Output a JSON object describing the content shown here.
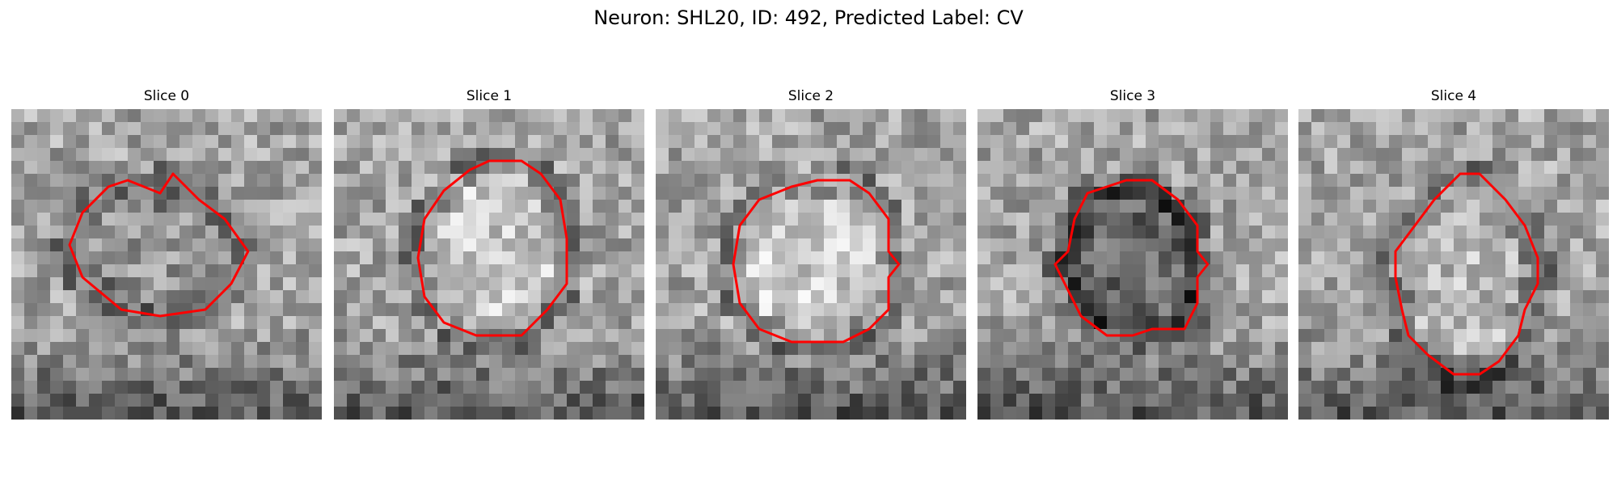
{
  "figure": {
    "title": "Neuron: SHL20, ID: 492, Predicted Label: CV"
  },
  "colors": {
    "contour": "#ff0000",
    "background": "#ffffff"
  },
  "panels": [
    {
      "title": "Slice 0",
      "blob_mean": 150,
      "contour": [
        [
          5,
          1
        ],
        [
          6,
          -0.5
        ],
        [
          8,
          1.5
        ],
        [
          10,
          3
        ],
        [
          11.8,
          5.5
        ],
        [
          10.5,
          8
        ],
        [
          8.5,
          10
        ],
        [
          5,
          10.5
        ],
        [
          2,
          10
        ],
        [
          -1,
          7.5
        ],
        [
          -2,
          5
        ],
        [
          -1,
          2.5
        ],
        [
          1,
          0.5
        ],
        [
          2.5,
          0
        ]
      ]
    },
    {
      "title": "Slice 1",
      "blob_mean": 200,
      "contour": [
        [
          5.5,
          -1.5
        ],
        [
          8,
          -1.5
        ],
        [
          9.5,
          -0.5
        ],
        [
          11,
          1.5
        ],
        [
          11.5,
          4.5
        ],
        [
          11.5,
          8
        ],
        [
          10,
          10
        ],
        [
          8,
          12
        ],
        [
          4.5,
          12
        ],
        [
          2,
          11
        ],
        [
          0.5,
          9
        ],
        [
          0,
          6
        ],
        [
          0.5,
          3
        ],
        [
          2,
          0.8
        ],
        [
          4,
          -0.8
        ]
      ]
    },
    {
      "title": "Slice 2",
      "blob_mean": 205,
      "contour": [
        [
          6,
          0
        ],
        [
          8.5,
          0
        ],
        [
          10,
          1
        ],
        [
          11.5,
          3
        ],
        [
          11.5,
          5.5
        ],
        [
          12.3,
          6.5
        ],
        [
          11.5,
          7.5
        ],
        [
          11.5,
          10
        ],
        [
          10,
          11.5
        ],
        [
          8,
          12.5
        ],
        [
          4,
          12.5
        ],
        [
          1.5,
          11.5
        ],
        [
          0,
          9.5
        ],
        [
          -0.5,
          6.5
        ],
        [
          0,
          3.5
        ],
        [
          1.5,
          1.5
        ],
        [
          4,
          0.5
        ]
      ]
    },
    {
      "title": "Slice 3",
      "blob_mean": 105,
      "contour": [
        [
          5,
          0
        ],
        [
          7,
          0
        ],
        [
          9,
          1.5
        ],
        [
          10.5,
          3.5
        ],
        [
          10.5,
          5.5
        ],
        [
          11.3,
          6.5
        ],
        [
          10.5,
          7.5
        ],
        [
          10.5,
          9.5
        ],
        [
          9.5,
          11.5
        ],
        [
          7,
          11.5
        ],
        [
          5.5,
          12
        ],
        [
          3.5,
          12
        ],
        [
          1.5,
          10.5
        ],
        [
          0.5,
          8.5
        ],
        [
          -0.5,
          6.5
        ],
        [
          0.5,
          5.5
        ],
        [
          1,
          3
        ],
        [
          2,
          1
        ]
      ]
    },
    {
      "title": "Slice 4",
      "blob_mean": 185,
      "contour": [
        [
          6,
          -0.5
        ],
        [
          7.5,
          -0.5
        ],
        [
          9.5,
          1.5
        ],
        [
          11,
          3.5
        ],
        [
          12,
          6
        ],
        [
          12,
          8
        ],
        [
          11,
          10
        ],
        [
          10.5,
          12
        ],
        [
          9,
          14
        ],
        [
          7.5,
          15
        ],
        [
          5.5,
          15
        ],
        [
          3.5,
          13.5
        ],
        [
          2,
          12
        ],
        [
          1.5,
          10
        ],
        [
          1,
          7.5
        ],
        [
          1,
          5.5
        ],
        [
          2.5,
          3.5
        ],
        [
          4,
          1.5
        ]
      ]
    }
  ]
}
